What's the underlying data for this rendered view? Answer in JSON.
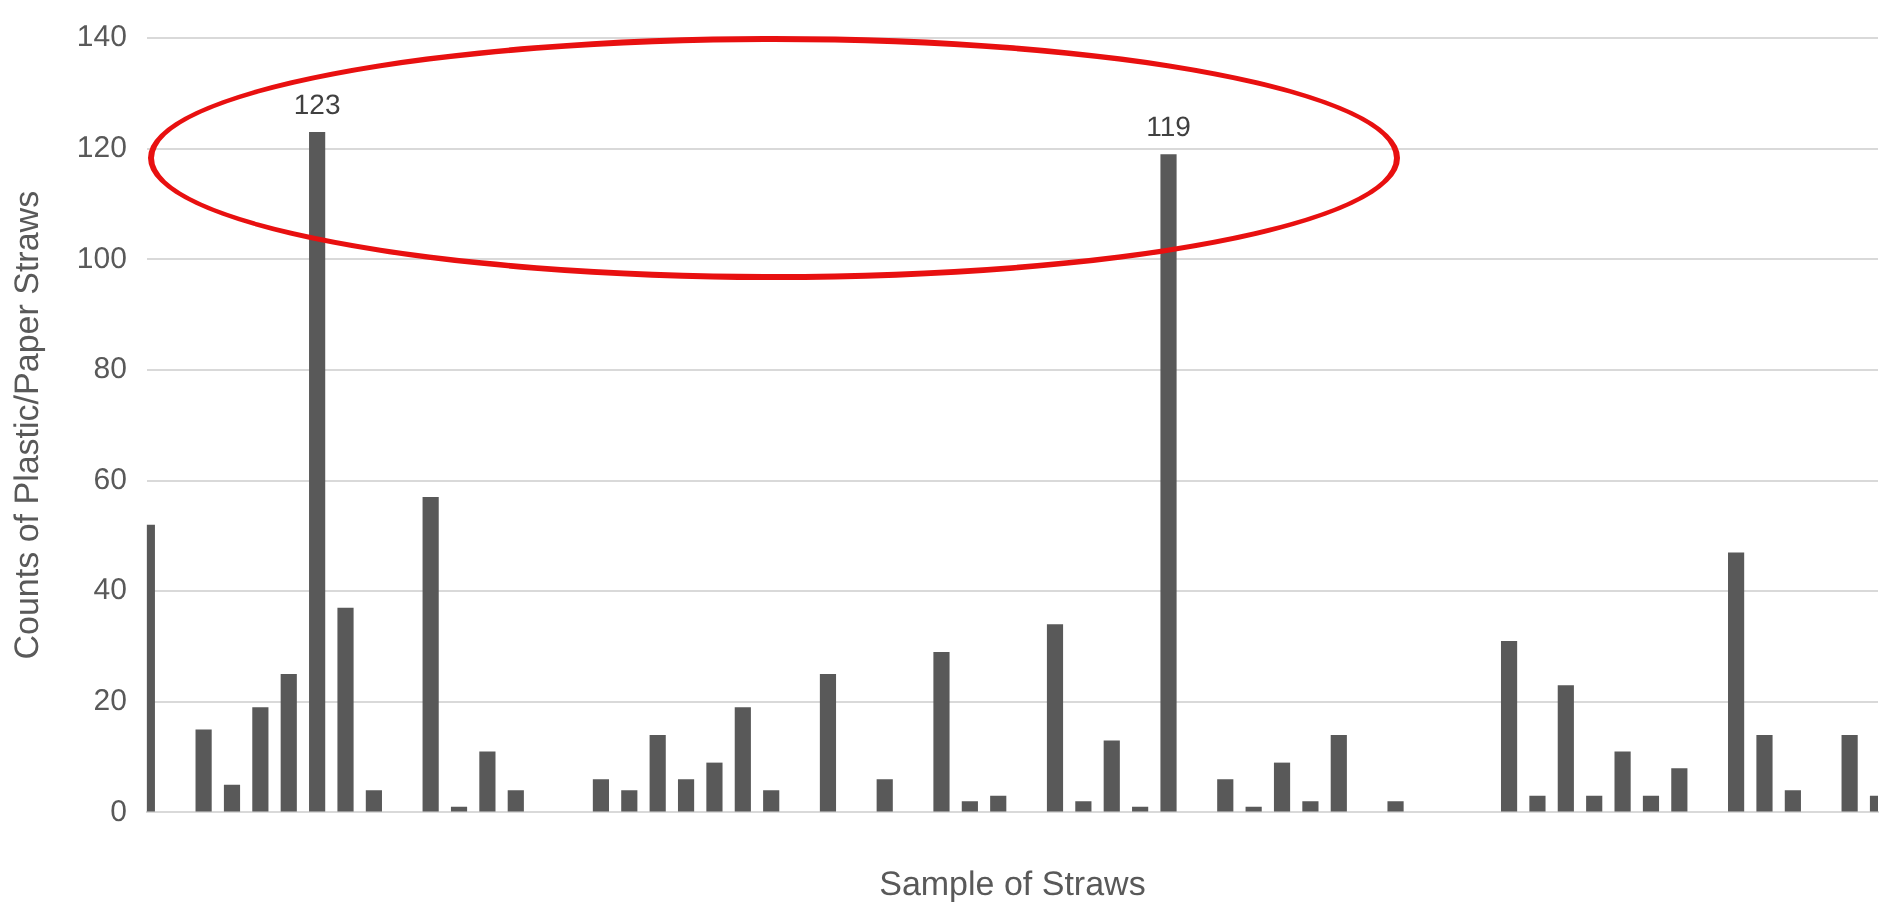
{
  "chart_data": {
    "type": "bar",
    "xlabel": "Sample of Straws",
    "ylabel": "Counts of Plastic/Paper Straws",
    "categories": [
      null,
      null,
      null,
      null,
      null,
      null,
      null,
      null,
      null,
      null,
      null,
      null,
      null,
      null,
      null,
      null,
      null,
      null,
      null,
      null,
      null,
      null,
      null,
      null,
      null,
      null,
      null,
      null,
      null,
      null,
      null,
      null,
      null,
      null,
      null,
      null,
      null,
      null,
      null,
      null,
      null,
      null,
      null,
      null,
      null,
      null,
      null,
      null,
      null,
      null,
      null,
      null,
      null,
      null,
      null,
      null,
      null,
      null,
      null,
      null,
      null,
      null
    ],
    "values": [
      52,
      0,
      15,
      5,
      19,
      25,
      123,
      37,
      4,
      0,
      57,
      1,
      11,
      4,
      0,
      0,
      6,
      4,
      14,
      6,
      9,
      19,
      4,
      0,
      25,
      0,
      6,
      0,
      29,
      2,
      3,
      0,
      34,
      2,
      13,
      1,
      119,
      0,
      6,
      1,
      9,
      2,
      14,
      0,
      2,
      0,
      0,
      0,
      31,
      3,
      23,
      3,
      11,
      3,
      8,
      0,
      47,
      14,
      4,
      0,
      14,
      3
    ],
    "value_labels": [
      null,
      null,
      null,
      null,
      null,
      null,
      "123",
      null,
      null,
      null,
      null,
      null,
      null,
      null,
      null,
      null,
      null,
      null,
      null,
      null,
      null,
      null,
      null,
      null,
      null,
      null,
      null,
      null,
      null,
      null,
      null,
      null,
      null,
      null,
      null,
      null,
      "119",
      null,
      null,
      null,
      null,
      null,
      null,
      null,
      null,
      null,
      null,
      null,
      null,
      null,
      null,
      null,
      null,
      null,
      null,
      null,
      null,
      null,
      null,
      null,
      null,
      null
    ],
    "color": "#595959",
    "ylim": [
      0,
      140
    ],
    "yticks": [
      0,
      20,
      40,
      60,
      80,
      100,
      120,
      140
    ],
    "grid": "y",
    "legend": false
  }
}
